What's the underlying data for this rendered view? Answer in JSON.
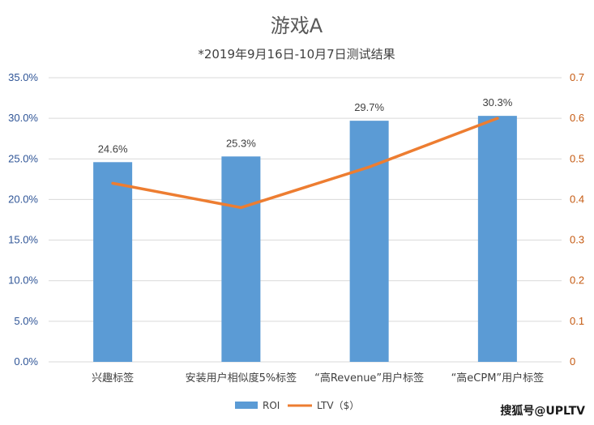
{
  "chart_data": {
    "type": "bar",
    "title": "游戏A",
    "subtitle": "*2019年9月16日-10月7日测试结果",
    "categories": [
      "兴趣标签",
      "安装用户相似度5%标签",
      "“高Revenue”用户标签",
      "“高eCPM”用户标签"
    ],
    "series": [
      {
        "name": "ROI",
        "type": "bar",
        "axis": "left",
        "color": "#5b9bd5",
        "values": [
          24.6,
          25.3,
          29.7,
          30.3
        ],
        "value_labels": [
          "24.6%",
          "25.3%",
          "29.7%",
          "30.3%"
        ]
      },
      {
        "name": "LTV（$）",
        "type": "line",
        "axis": "right",
        "color": "#ed7d31",
        "values": [
          0.44,
          0.38,
          0.48,
          0.6
        ]
      }
    ],
    "y_left": {
      "ylim": [
        0,
        35
      ],
      "ticks": [
        "0.0%",
        "5.0%",
        "10.0%",
        "15.0%",
        "20.0%",
        "25.0%",
        "30.0%",
        "35.0%"
      ]
    },
    "y_right": {
      "ylim": [
        0,
        0.7
      ],
      "ticks": [
        "0",
        "0.1",
        "0.2",
        "0.3",
        "0.4",
        "0.5",
        "0.6",
        "0.7"
      ]
    },
    "grid": true,
    "legend_position": "bottom"
  },
  "watermark": "搜狐号@UPLTV"
}
